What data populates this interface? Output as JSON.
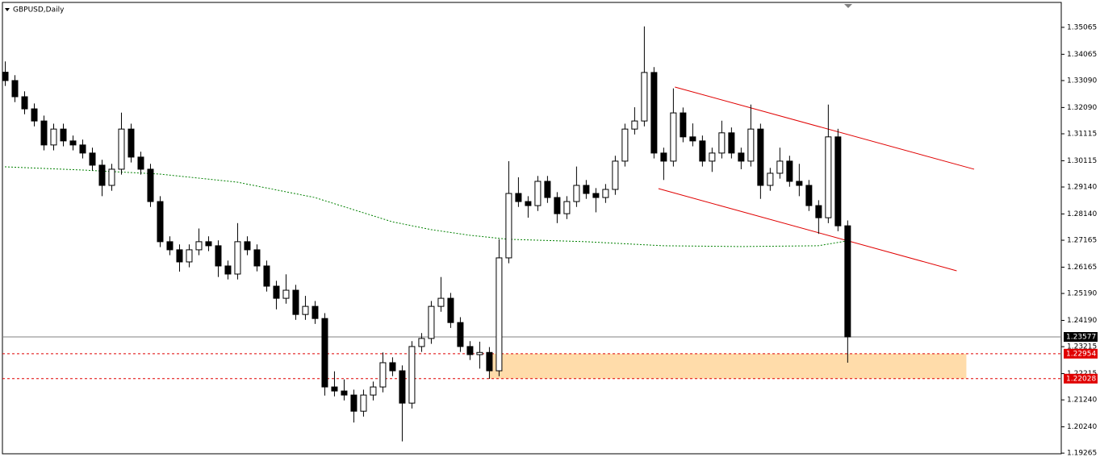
{
  "chart_data": {
    "type": "candlestick",
    "title": "GBPUSD,Daily",
    "ylim": [
      1.1924,
      1.3599
    ],
    "xlim": [
      -0.25,
      109.1
    ],
    "yticks": [
      1.35065,
      1.34065,
      {
        "value": 1.3309,
        "label": "1.33090"
      },
      {
        "value": 1.3209,
        "label": "1.32090"
      },
      1.31115,
      1.30115,
      {
        "value": 1.2914,
        "label": "1.29140"
      },
      {
        "value": 1.2814,
        "label": "1.28140"
      },
      1.27165,
      1.26165,
      {
        "value": 1.2519,
        "label": "1.25190"
      },
      {
        "value": 1.2419,
        "label": "1.24190"
      },
      1.23215,
      1.22215,
      {
        "value": 1.2124,
        "label": "1.21240"
      },
      {
        "value": 1.2024,
        "label": "1.20240"
      },
      1.19265
    ],
    "bull_color": "#ffffff",
    "bear_color": "#000000",
    "outline_color": "#000000",
    "ohlc": [
      [
        1.334,
        1.338,
        1.3289,
        1.3309
      ],
      [
        1.3309,
        1.3329,
        1.3229,
        1.3249
      ],
      [
        1.3249,
        1.3269,
        1.3184,
        1.3204
      ],
      [
        1.3204,
        1.3224,
        1.3139,
        1.3159
      ],
      [
        1.3159,
        1.3179,
        1.305,
        1.307
      ],
      [
        1.307,
        1.3149,
        1.305,
        1.3129
      ],
      [
        1.3129,
        1.3149,
        1.3065,
        1.3085
      ],
      [
        1.3085,
        1.3105,
        1.305,
        1.307
      ],
      [
        1.307,
        1.309,
        1.302,
        1.304
      ],
      [
        1.304,
        1.306,
        1.2975,
        1.2995
      ],
      [
        1.2995,
        1.3015,
        1.288,
        1.292
      ],
      [
        1.292,
        1.3,
        1.29,
        1.298
      ],
      [
        1.298,
        1.319,
        1.296,
        1.3129
      ],
      [
        1.3129,
        1.3149,
        1.3005,
        1.3025
      ],
      [
        1.3025,
        1.3045,
        1.296,
        1.298
      ],
      [
        1.298,
        1.3,
        1.284,
        1.286
      ],
      [
        1.286,
        1.288,
        1.2691,
        1.2711
      ],
      [
        1.2711,
        1.2731,
        1.2661,
        1.2681
      ],
      [
        1.2681,
        1.2701,
        1.26,
        1.2636
      ],
      [
        1.2636,
        1.2701,
        1.2616,
        1.2681
      ],
      [
        1.2681,
        1.276,
        1.2661,
        1.2711
      ],
      [
        1.2711,
        1.2731,
        1.2676,
        1.2696
      ],
      [
        1.2696,
        1.2716,
        1.258,
        1.2621
      ],
      [
        1.2621,
        1.2641,
        1.2571,
        1.2591
      ],
      [
        1.2591,
        1.278,
        1.2571,
        1.2711
      ],
      [
        1.2711,
        1.2731,
        1.2661,
        1.2681
      ],
      [
        1.2681,
        1.2701,
        1.2601,
        1.2621
      ],
      [
        1.2621,
        1.2641,
        1.2526,
        1.2546
      ],
      [
        1.2546,
        1.2566,
        1.246,
        1.2501
      ],
      [
        1.2501,
        1.259,
        1.2481,
        1.2531
      ],
      [
        1.2531,
        1.2551,
        1.2421,
        1.2441
      ],
      [
        1.2441,
        1.251,
        1.2421,
        1.2471
      ],
      [
        1.2471,
        1.2491,
        1.2406,
        1.2426
      ],
      [
        1.2426,
        1.2446,
        1.214,
        1.2172
      ],
      [
        1.2172,
        1.223,
        1.2137,
        1.2157
      ],
      [
        1.2157,
        1.22,
        1.2122,
        1.2142
      ],
      [
        1.2142,
        1.2162,
        1.204,
        1.2082
      ],
      [
        1.2082,
        1.2162,
        1.2062,
        1.2142
      ],
      [
        1.2142,
        1.2192,
        1.2122,
        1.2172
      ],
      [
        1.2172,
        1.23,
        1.2152,
        1.2262
      ],
      [
        1.2262,
        1.2282,
        1.2212,
        1.2232
      ],
      [
        1.2232,
        1.2252,
        1.197,
        1.2112
      ],
      [
        1.2112,
        1.2342,
        1.2092,
        1.2322
      ],
      [
        1.2322,
        1.2372,
        1.2302,
        1.2352
      ],
      [
        1.2352,
        1.2491,
        1.2332,
        1.2471
      ],
      [
        1.2471,
        1.258,
        1.2451,
        1.2501
      ],
      [
        1.2501,
        1.2521,
        1.2391,
        1.2411
      ],
      [
        1.2411,
        1.2431,
        1.2302,
        1.2322
      ],
      [
        1.2322,
        1.2342,
        1.2272,
        1.2292
      ],
      [
        1.2292,
        1.234,
        1.224,
        1.23
      ],
      [
        1.23,
        1.232,
        1.2202,
        1.2232
      ],
      [
        1.2232,
        1.272,
        1.2212,
        1.2651
      ],
      [
        1.2651,
        1.301,
        1.2631,
        1.289
      ],
      [
        1.289,
        1.295,
        1.284,
        1.286
      ],
      [
        1.286,
        1.288,
        1.28,
        1.2845
      ],
      [
        1.2845,
        1.2955,
        1.2825,
        1.2935
      ],
      [
        1.2935,
        1.2955,
        1.2855,
        1.2875
      ],
      [
        1.2875,
        1.2895,
        1.278,
        1.2815
      ],
      [
        1.2815,
        1.288,
        1.2795,
        1.286
      ],
      [
        1.286,
        1.299,
        1.284,
        1.292
      ],
      [
        1.292,
        1.294,
        1.287,
        1.289
      ],
      [
        1.289,
        1.291,
        1.282,
        1.2875
      ],
      [
        1.2875,
        1.2925,
        1.2855,
        1.2905
      ],
      [
        1.2905,
        1.303,
        1.2885,
        1.301
      ],
      [
        1.301,
        1.3149,
        1.299,
        1.3129
      ],
      [
        1.3129,
        1.321,
        1.3109,
        1.3159
      ],
      [
        1.3159,
        1.351,
        1.3139,
        1.3339
      ],
      [
        1.3339,
        1.3359,
        1.302,
        1.304
      ],
      [
        1.304,
        1.306,
        1.294,
        1.301
      ],
      [
        1.301,
        1.328,
        1.299,
        1.3189
      ],
      [
        1.3189,
        1.3209,
        1.308,
        1.31
      ],
      [
        1.31,
        1.315,
        1.3065,
        1.3085
      ],
      [
        1.3085,
        1.3105,
        1.299,
        1.301
      ],
      [
        1.301,
        1.306,
        1.297,
        1.304
      ],
      [
        1.304,
        1.316,
        1.302,
        1.3115
      ],
      [
        1.3115,
        1.3135,
        1.302,
        1.304
      ],
      [
        1.304,
        1.306,
        1.298,
        1.301
      ],
      [
        1.301,
        1.322,
        1.299,
        1.3129
      ],
      [
        1.3129,
        1.3149,
        1.287,
        1.292
      ],
      [
        1.292,
        1.2985,
        1.29,
        1.2965
      ],
      [
        1.2965,
        1.306,
        1.2945,
        1.301
      ],
      [
        1.301,
        1.303,
        1.2915,
        1.2935
      ],
      [
        1.2935,
        1.3,
        1.288,
        1.292
      ],
      [
        1.292,
        1.294,
        1.2825,
        1.2845
      ],
      [
        1.2845,
        1.2865,
        1.274,
        1.28
      ],
      [
        1.28,
        1.322,
        1.278,
        1.31
      ],
      [
        1.31,
        1.313,
        1.275,
        1.277
      ],
      [
        1.277,
        1.279,
        1.2262,
        1.23577
      ]
    ],
    "ma": {
      "color": "#008000",
      "x": [
        0,
        8,
        16,
        24,
        32,
        40,
        44,
        48,
        52,
        60,
        68,
        76,
        84,
        87
      ],
      "values": [
        1.2989,
        1.2977,
        1.2962,
        1.2932,
        1.2875,
        1.2785,
        1.2756,
        1.2735,
        1.272,
        1.2711,
        1.2696,
        1.2693,
        1.2696,
        1.2714
      ]
    },
    "channel": [
      {
        "color": "#e00000",
        "x": [
          69.2,
          100.1
        ],
        "values": [
          1.3285,
          1.298
        ]
      },
      {
        "color": "#e00000",
        "x": [
          67.5,
          98.3
        ],
        "values": [
          1.2908,
          1.2603
        ]
      }
    ],
    "zone": {
      "color": "#ffdcaa",
      "x": [
        50,
        99.3
      ],
      "values": [
        1.22954,
        1.22028
      ]
    },
    "levels": [
      {
        "value": 1.23577,
        "color": "#808080",
        "dashed": false,
        "label_bg": "#000000"
      },
      {
        "value": 1.22954,
        "color": "#e00000",
        "dashed": true,
        "label_bg": "#e00000"
      },
      {
        "value": 1.22028,
        "color": "#e00000",
        "dashed": true,
        "label_bg": "#e00000"
      }
    ]
  }
}
